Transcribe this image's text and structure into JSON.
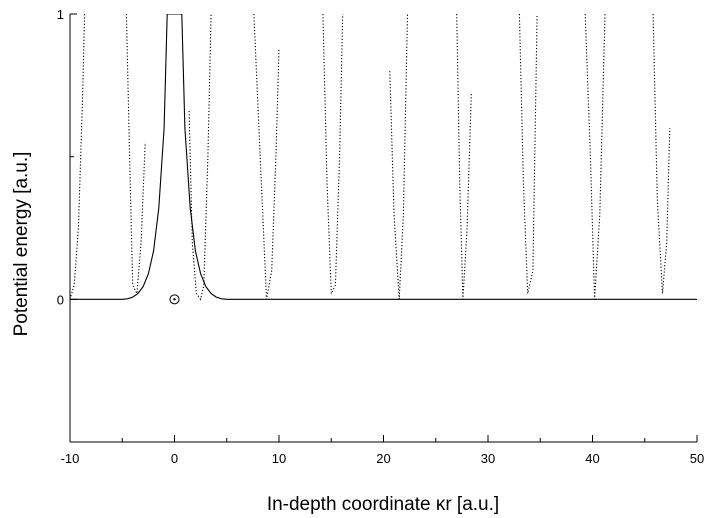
{
  "chart_data": {
    "type": "line",
    "title": "",
    "xlabel": "In-depth coordinate κr [a.u.]",
    "ylabel": "Potential energy [a.u.]",
    "xlim": [
      -10,
      50
    ],
    "ylim": [
      -0.5,
      1
    ],
    "x_ticks": [
      -10,
      0,
      10,
      20,
      30,
      40,
      50
    ],
    "x_tick_labels": [
      "-10",
      "0",
      "10",
      "20",
      "30",
      "40",
      "50"
    ],
    "y_ticks": [
      0,
      1
    ],
    "y_tick_labels": [
      "0",
      "1"
    ],
    "grid": false,
    "legend": "none",
    "series": [
      {
        "style": "solid",
        "color": "#000000",
        "x": [
          -10,
          -5,
          -4.5,
          -4,
          -3.5,
          -3,
          -2.5,
          -2,
          -1.5,
          -1,
          -0.7,
          0.7,
          1,
          1.5,
          2,
          2.5,
          3,
          3.5,
          4,
          4.5,
          5,
          50
        ],
        "y": [
          0,
          0,
          0.002,
          0.008,
          0.02,
          0.045,
          0.09,
          0.17,
          0.32,
          0.6,
          1.0,
          1.0,
          0.6,
          0.32,
          0.17,
          0.09,
          0.045,
          0.02,
          0.008,
          0.002,
          0,
          0
        ]
      },
      {
        "style": "dotted",
        "color": "#000000",
        "segments": [
          {
            "x": [
              -10,
              -9.6,
              -9.2,
              -8.8,
              -8.6
            ],
            "y": [
              0.0,
              0.05,
              0.25,
              0.7,
              1.0
            ]
          },
          {
            "x": [
              -4.6,
              -4.3,
              -4.0,
              -3.6,
              -3.2,
              -2.8
            ],
            "y": [
              1.0,
              0.5,
              0.05,
              0.02,
              0.2,
              0.55
            ]
          },
          {
            "x": [
              1.4,
              1.7,
              2.1,
              2.5,
              2.8,
              3.2,
              3.5
            ],
            "y": [
              0.66,
              0.2,
              0.02,
              0.0,
              0.05,
              0.5,
              1.0
            ]
          },
          {
            "x": [
              7.6,
              8.2,
              8.8,
              9.3,
              9.7,
              10.0
            ],
            "y": [
              1.0,
              0.5,
              0.0,
              0.1,
              0.5,
              0.88
            ]
          },
          {
            "x": [
              14.2,
              14.6,
              15.0,
              15.4,
              15.8,
              16.1
            ],
            "y": [
              1.0,
              0.4,
              0.02,
              0.05,
              0.5,
              1.0
            ]
          },
          {
            "x": [
              20.6,
              21.0,
              21.5,
              21.9,
              22.3
            ],
            "y": [
              0.8,
              0.3,
              0.0,
              0.3,
              1.0
            ]
          },
          {
            "x": [
              27.0,
              27.3,
              27.6,
              28.0,
              28.4
            ],
            "y": [
              1.0,
              0.4,
              0.0,
              0.25,
              0.72
            ]
          },
          {
            "x": [
              33.0,
              33.4,
              33.8,
              34.3,
              34.7
            ],
            "y": [
              1.0,
              0.4,
              0.02,
              0.1,
              1.0
            ]
          },
          {
            "x": [
              39.3,
              39.8,
              40.2,
              40.7,
              41.2
            ],
            "y": [
              1.0,
              0.5,
              0.0,
              0.3,
              1.0
            ]
          },
          {
            "x": [
              45.8,
              46.2,
              46.7,
              47.1,
              47.4
            ],
            "y": [
              1.0,
              0.35,
              0.02,
              0.2,
              0.6
            ]
          }
        ]
      }
    ],
    "annotations": [
      {
        "type": "marker",
        "symbol": "circled-dot",
        "x": 0,
        "y": 0
      }
    ]
  }
}
